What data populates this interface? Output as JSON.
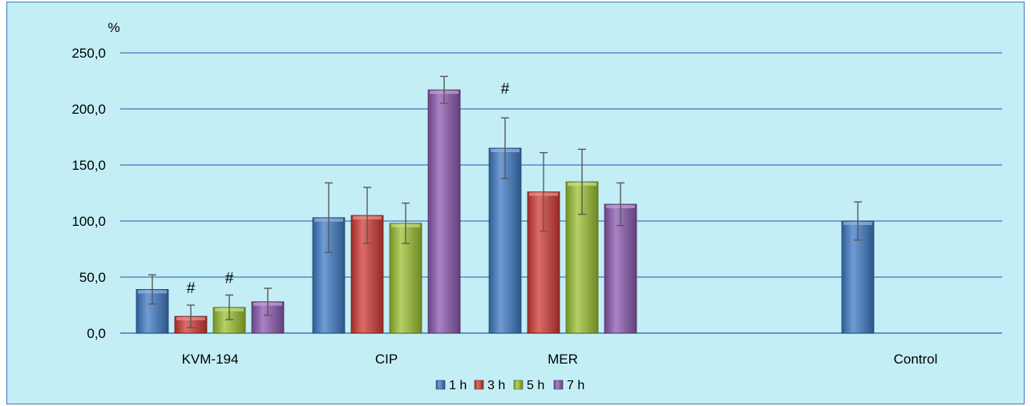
{
  "chart_data": {
    "type": "bar",
    "ylabel": "%",
    "ylim": [
      0,
      250
    ],
    "yticks": [
      "0,0",
      "50,0",
      "100,0",
      "150,0",
      "200,0",
      "250,0"
    ],
    "ytick_values": [
      0,
      50,
      100,
      150,
      200,
      250
    ],
    "grid": true,
    "legend_position": "bottom",
    "categories": [
      "KVM-194",
      "CIP",
      "MER",
      "Control"
    ],
    "series": [
      {
        "name": "1 h",
        "color": "#3f7bc6",
        "values": [
          39,
          103,
          165,
          100
        ],
        "errors": [
          13,
          31,
          27,
          17
        ]
      },
      {
        "name": "3 h",
        "color": "#d23b35",
        "values": [
          15,
          105,
          126,
          null
        ],
        "errors": [
          10,
          25,
          35,
          null
        ]
      },
      {
        "name": "5 h",
        "color": "#9cc232",
        "values": [
          23,
          98,
          135,
          null
        ],
        "errors": [
          11,
          18,
          29,
          null
        ]
      },
      {
        "name": "7 h",
        "color": "#8c5ab1",
        "values": [
          28,
          217,
          115,
          null
        ],
        "errors": [
          12,
          12,
          19,
          null
        ]
      }
    ],
    "annotations": [
      {
        "text": "#",
        "category": "KVM-194",
        "series": "3 h"
      },
      {
        "text": "#",
        "category": "KVM-194",
        "series": "5 h"
      },
      {
        "text": "#",
        "category": "MER",
        "series": "1 h"
      }
    ]
  }
}
